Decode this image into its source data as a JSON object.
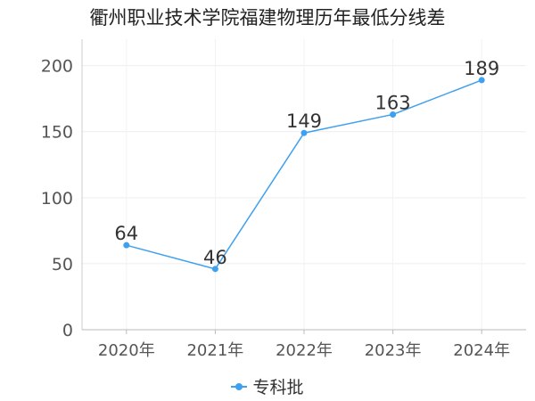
{
  "chart_data": {
    "type": "line",
    "title": "衢州职业技术学院福建物理历年最低分线差",
    "categories": [
      "2020年",
      "2021年",
      "2022年",
      "2023年",
      "2024年"
    ],
    "series": [
      {
        "name": "专科批",
        "values": [
          64,
          46,
          149,
          163,
          189
        ],
        "color": "#3fa0ef"
      }
    ],
    "ylim": [
      0,
      220
    ],
    "yticks": [
      0,
      50,
      100,
      150,
      200
    ],
    "grid": true,
    "legend": "bottom",
    "data_labels": true
  }
}
